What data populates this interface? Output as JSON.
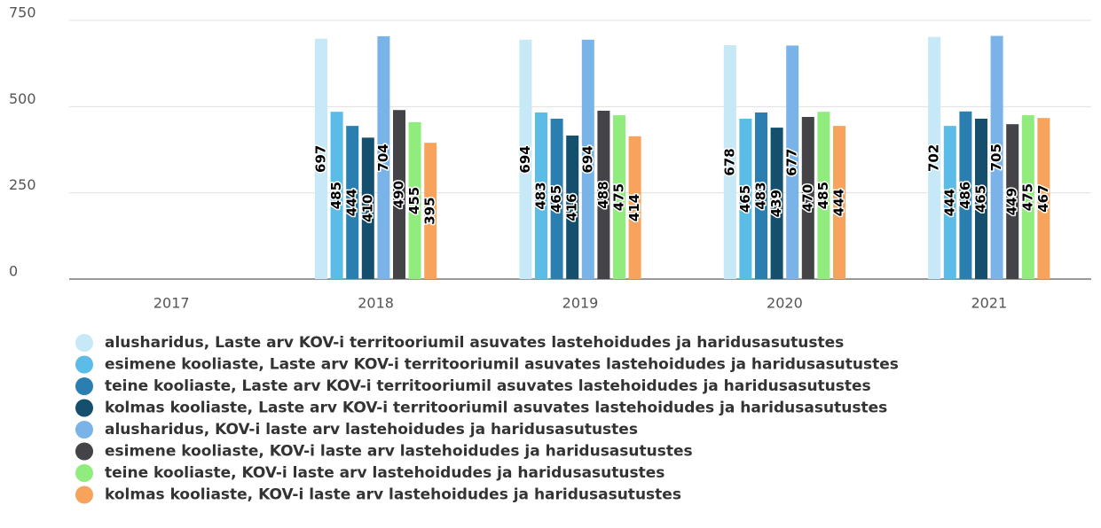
{
  "chart_data": {
    "type": "bar",
    "categories": [
      "2017",
      "2018",
      "2019",
      "2020",
      "2021"
    ],
    "ylim": [
      0,
      750
    ],
    "yticks": [
      0,
      250,
      500,
      750
    ],
    "grid": true,
    "series": [
      {
        "name": "alusharidus, Laste arv KOV-i territooriumil asuvates lastehoidudes ja haridusasutustes",
        "color": "#c6e8f7",
        "values": [
          null,
          697,
          694,
          678,
          702
        ]
      },
      {
        "name": "esimene kooliaste, Laste arv KOV-i territooriumil asuvates lastehoidudes ja haridusasutustes",
        "color": "#5bbce8",
        "values": [
          null,
          485,
          483,
          465,
          444
        ]
      },
      {
        "name": "teine kooliaste, Laste arv KOV-i territooriumil asuvates lastehoidudes ja haridusasutustes",
        "color": "#2a7fb0",
        "values": [
          null,
          444,
          465,
          483,
          486
        ]
      },
      {
        "name": "kolmas kooliaste, Laste arv KOV-i territooriumil asuvates lastehoidudes ja haridusasutustes",
        "color": "#14506e",
        "values": [
          null,
          410,
          416,
          439,
          465
        ]
      },
      {
        "name": "alusharidus, KOV-i laste arv lastehoidudes ja haridusasutustes",
        "color": "#7ab3e8",
        "values": [
          null,
          704,
          694,
          677,
          705
        ]
      },
      {
        "name": "esimene kooliaste, KOV-i laste arv lastehoidudes ja haridusasutustes",
        "color": "#434348",
        "values": [
          null,
          490,
          488,
          470,
          449
        ]
      },
      {
        "name": "teine kooliaste, KOV-i laste arv lastehoidudes ja haridusasutustes",
        "color": "#90ed7d",
        "values": [
          null,
          455,
          475,
          485,
          475
        ]
      },
      {
        "name": "kolmas kooliaste, KOV-i laste arv lastehoidudes ja haridusasutustes",
        "color": "#f7a35c",
        "values": [
          null,
          395,
          414,
          444,
          467
        ]
      }
    ]
  }
}
